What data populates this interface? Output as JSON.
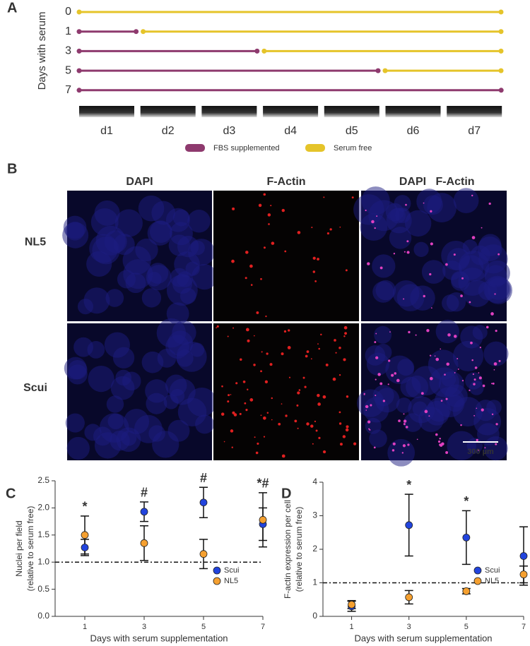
{
  "panel_a": {
    "letter": "A",
    "ylabel": "Days with serum",
    "serum_days": [
      0,
      1,
      3,
      5,
      7
    ],
    "days": [
      "d1",
      "d2",
      "d3",
      "d4",
      "d5",
      "d6",
      "d7"
    ],
    "legend": [
      {
        "name": "FBS supplemented",
        "color": "#8e3a6e"
      },
      {
        "name": "Serum free",
        "color": "#e5c42a"
      }
    ]
  },
  "panel_b": {
    "letter": "B",
    "columns": [
      [
        {
          "text": "DAPI",
          "color": "#2222dd"
        }
      ],
      [
        {
          "text": "F-Actin",
          "color": "#e02020"
        }
      ],
      [
        {
          "text": "DAPI",
          "color": "#2222dd"
        },
        {
          "text": "F-Actin",
          "color": "#e02020"
        }
      ]
    ],
    "rows": [
      "NL5",
      "Scui"
    ],
    "scale_bar": "300 µm"
  },
  "chart_data": [
    {
      "type": "scatter",
      "letter": "C",
      "xlabel": "Days with serum supplementation",
      "ylabel": [
        "Nuclei per field",
        "(relative to serum free)"
      ],
      "x": [
        1,
        3,
        5,
        7
      ],
      "xlim": [
        0,
        7
      ],
      "xticks": [
        1,
        3,
        5,
        7
      ],
      "ylim": [
        0,
        2.5
      ],
      "yticks": [
        {
          "value": 0,
          "label": "0.0"
        },
        {
          "value": 0.5,
          "label": "0.5"
        },
        {
          "value": 1,
          "label": "1.0"
        },
        {
          "value": 1.5,
          "label": "1.5"
        },
        {
          "value": 2,
          "label": "2.0"
        },
        {
          "value": 2.5,
          "label": "2.5"
        }
      ],
      "reference_line": 1,
      "legend": "lower right",
      "series": [
        {
          "name": "Scui",
          "color": "#2244dd",
          "values": [
            1.27,
            1.93,
            2.1,
            1.7
          ],
          "errors": [
            0.15,
            0.18,
            0.28,
            0.3
          ]
        },
        {
          "name": "NL5",
          "color": "#f5a030",
          "values": [
            1.5,
            1.35,
            1.15,
            1.78
          ],
          "errors": [
            0.35,
            0.32,
            0.27,
            0.5
          ]
        }
      ],
      "annotations": [
        {
          "text": "*",
          "x": 1
        },
        {
          "text": "#",
          "x": 3
        },
        {
          "text": "#",
          "x": 5
        },
        {
          "text": "*#",
          "x": 7
        }
      ]
    },
    {
      "type": "scatter",
      "letter": "D",
      "xlabel": "Days with serum supplementation",
      "ylabel": [
        "F-actin expression per cell",
        "(relative to serum free)"
      ],
      "x": [
        1,
        3,
        5,
        7
      ],
      "xlim": [
        0,
        7
      ],
      "xticks": [
        1,
        3,
        5,
        7
      ],
      "ylim": [
        0,
        4
      ],
      "yticks": [
        0,
        1,
        2,
        3,
        4
      ],
      "reference_line": 1,
      "legend": "lower right",
      "series": [
        {
          "name": "Scui",
          "color": "#2244dd",
          "values": [
            0.3,
            2.72,
            2.35,
            1.8
          ],
          "errors": [
            0.15,
            0.92,
            0.8,
            0.87
          ]
        },
        {
          "name": "NL5",
          "color": "#f5a030",
          "values": [
            0.35,
            0.57,
            0.75,
            1.25
          ],
          "errors": [
            0.12,
            0.2,
            0.08,
            0.25
          ]
        }
      ],
      "annotations": [
        {
          "text": "*",
          "x": 3
        },
        {
          "text": "*",
          "x": 5
        }
      ]
    }
  ]
}
